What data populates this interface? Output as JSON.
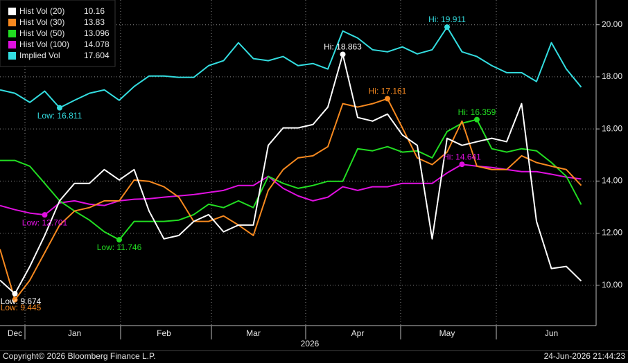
{
  "chart_data": {
    "type": "line",
    "legend": "upper left",
    "grid": true,
    "xlabel": "2026",
    "categories": [
      null,
      "Dec",
      null,
      null,
      null,
      "Jan",
      null,
      null,
      null,
      null,
      null,
      "Feb",
      null,
      null,
      null,
      null,
      null,
      "Mar",
      null,
      null,
      null,
      null,
      null,
      null,
      "Apr",
      null,
      null,
      null,
      null,
      null,
      "May",
      null,
      null,
      null,
      null,
      null,
      null,
      "Jun",
      null,
      null
    ],
    "ylim": [
      8.45,
      20.95
    ],
    "yticks": [
      {
        "value": 10,
        "label": "10.00"
      },
      {
        "value": 12,
        "label": "12.00"
      },
      {
        "value": 14,
        "label": "14.00"
      },
      {
        "value": 16,
        "label": "16.00"
      },
      {
        "value": 18,
        "label": "18.00"
      },
      {
        "value": 20,
        "label": "20.00"
      }
    ],
    "series": [
      {
        "name": "Hist Vol (20)",
        "color": "#ffffff",
        "values": [
          10.19,
          9.674,
          10.72,
          11.91,
          13.24,
          13.91,
          13.91,
          14.44,
          14.04,
          14.44,
          12.85,
          11.78,
          11.91,
          12.45,
          12.71,
          12.05,
          12.31,
          12.31,
          15.37,
          16.04,
          16.04,
          16.17,
          16.84,
          18.863,
          16.44,
          16.3,
          16.57,
          15.77,
          15.37,
          11.78,
          15.64,
          15.37,
          15.51,
          15.64,
          15.51,
          16.97,
          12.45,
          10.64,
          10.72,
          10.16
        ],
        "annotations": [
          {
            "text": "Hi: 18.863",
            "index": 23
          },
          {
            "text": "Low: 9.674",
            "index": 1
          }
        ]
      },
      {
        "name": "Hist Vol (30)",
        "color": "#f7891f",
        "values": [
          11.38,
          9.445,
          10.19,
          11.25,
          12.31,
          12.85,
          12.98,
          13.24,
          13.24,
          14.04,
          13.99,
          13.78,
          13.38,
          12.45,
          12.45,
          12.66,
          12.31,
          11.91,
          13.64,
          14.44,
          14.89,
          14.97,
          15.32,
          16.97,
          16.84,
          16.97,
          17.161,
          16.04,
          14.89,
          14.63,
          15.11,
          16.3,
          14.57,
          14.44,
          14.44,
          14.97,
          14.71,
          14.57,
          14.44,
          13.83
        ],
        "annotations": [
          {
            "text": "Hi: 17.161",
            "index": 26
          },
          {
            "text": "Low: 9.445",
            "index": 1
          }
        ]
      },
      {
        "name": "Hist Vol (50)",
        "color": "#22dd22",
        "values": [
          14.79,
          14.79,
          14.57,
          13.91,
          13.24,
          12.85,
          12.5,
          12.05,
          11.746,
          12.45,
          12.45,
          12.45,
          12.5,
          12.71,
          13.11,
          12.98,
          13.24,
          12.98,
          14.18,
          13.91,
          13.72,
          13.83,
          13.99,
          13.99,
          15.24,
          15.16,
          15.32,
          15.11,
          15.16,
          14.89,
          15.9,
          16.22,
          16.359,
          15.24,
          15.11,
          15.24,
          15.16,
          14.71,
          14.18,
          13.096
        ],
        "annotations": [
          {
            "text": "Hi: 16.359",
            "index": 32
          },
          {
            "text": "Low: 11.746",
            "index": 8
          }
        ]
      },
      {
        "name": "Hist Vol (100)",
        "color": "#e010e0",
        "values": [
          13.06,
          12.9,
          12.77,
          12.701,
          13.16,
          13.24,
          13.11,
          13.06,
          13.24,
          13.3,
          13.32,
          13.38,
          13.43,
          13.48,
          13.56,
          13.64,
          13.83,
          13.83,
          14.18,
          13.72,
          13.43,
          13.24,
          13.38,
          13.78,
          13.64,
          13.78,
          13.78,
          13.91,
          13.91,
          13.91,
          14.31,
          14.641,
          14.57,
          14.52,
          14.44,
          14.36,
          14.36,
          14.26,
          14.15,
          14.078
        ],
        "annotations": [
          {
            "text": "Hi: 14.641",
            "index": 31
          },
          {
            "text": "Low: 12.701",
            "index": 3
          }
        ]
      },
      {
        "name": "Implied Vol",
        "color": "#33dde0",
        "values": [
          17.5,
          17.37,
          17.02,
          17.45,
          16.811,
          17.1,
          17.37,
          17.5,
          17.1,
          17.63,
          18.03,
          18.03,
          17.98,
          17.98,
          18.43,
          18.62,
          19.31,
          18.7,
          18.62,
          18.78,
          18.43,
          18.51,
          18.3,
          19.76,
          19.49,
          19.04,
          18.96,
          19.15,
          18.88,
          19.04,
          19.911,
          18.96,
          18.78,
          18.43,
          18.16,
          18.16,
          17.82,
          19.31,
          18.3,
          17.604
        ],
        "annotations": [
          {
            "text": "Hi: 19.911",
            "index": 30
          },
          {
            "text": "Low: 16.811",
            "index": 4
          }
        ]
      }
    ]
  },
  "footer": {
    "copyright": "Copyright© 2026 Bloomberg Finance L.P.",
    "timestamp": "24-Jun-2026 21:44:23"
  }
}
